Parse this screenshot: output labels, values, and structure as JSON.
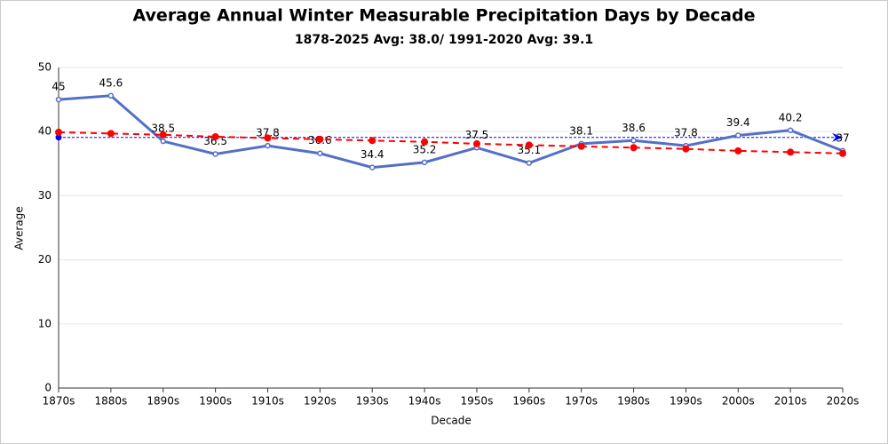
{
  "chart_data": {
    "type": "line",
    "title": "Average Annual Winter Measurable Precipitation Days by Decade",
    "subtitle": "1878-2025 Avg: 38.0/ 1991-2020 Avg: 39.1",
    "x_label": "Decade",
    "y_label": "Average",
    "categories": [
      "1870s",
      "1880s",
      "1890s",
      "1900s",
      "1910s",
      "1920s",
      "1930s",
      "1940s",
      "1950s",
      "1960s",
      "1970s",
      "1980s",
      "1990s",
      "2000s",
      "2010s",
      "2020s"
    ],
    "series": [
      {
        "color": "#5470c6",
        "values": [
          45,
          45.6,
          38.5,
          36.5,
          37.8,
          36.6,
          34.4,
          35.2,
          37.5,
          35.1,
          38.1,
          38.6,
          37.8,
          39.4,
          40.2,
          37
        ],
        "labels": true
      },
      {
        "color": "#ff0000",
        "dashed": true,
        "values": [
          39.9,
          39.7,
          39.5,
          39.2,
          39.0,
          38.8,
          38.6,
          38.4,
          38.1,
          37.9,
          37.7,
          37.5,
          37.3,
          37.0,
          36.8,
          36.6
        ]
      }
    ],
    "reference_line": {
      "value": 39.1,
      "color": "#0000ff"
    },
    "ylim": [
      0,
      50
    ],
    "yticks": [
      0,
      10,
      20,
      30,
      40,
      50
    ],
    "grid": true
  }
}
